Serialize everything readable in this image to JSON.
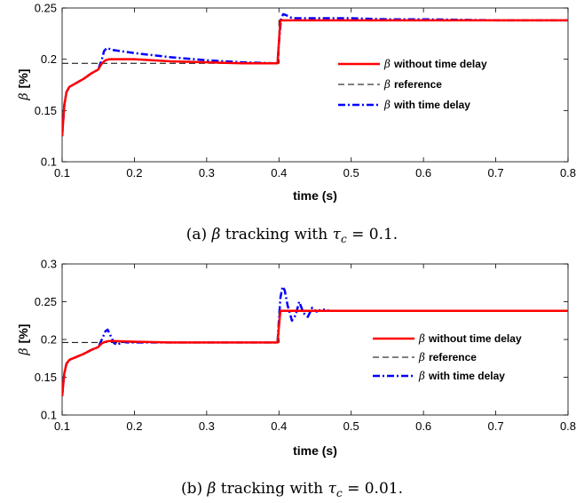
{
  "chart_data": [
    {
      "type": "line",
      "caption": {
        "pre": "(a) ",
        "beta": "β",
        "mid": " tracking with ",
        "tau": "τ",
        "sub": "c",
        "post": " = 0.1."
      },
      "xlabel": "time (s)",
      "ylabel": {
        "symbol": "β",
        "unit": "[%]"
      },
      "xlim": [
        0.1,
        0.8
      ],
      "ylim": [
        0.1,
        0.25
      ],
      "xticks": [
        "0.1",
        "0.2",
        "0.3",
        "0.4",
        "0.5",
        "0.6",
        "0.7",
        "0.8"
      ],
      "yticks": [
        "0.1",
        "0.15",
        "0.2",
        "0.25"
      ],
      "grid": false,
      "legend": {
        "placement": "right",
        "entries": [
          {
            "symbol": "β",
            "text": "without time delay"
          },
          {
            "symbol": "β",
            "text": "reference"
          },
          {
            "symbol": "β",
            "text": "with time delay"
          }
        ]
      },
      "colors": {
        "without": "#ff0000",
        "reference": "#000000",
        "with": "#0000ff"
      },
      "series": [
        {
          "key": "without",
          "style": "solid",
          "x": [
            0.1,
            0.103,
            0.106,
            0.11,
            0.12,
            0.13,
            0.14,
            0.15,
            0.155,
            0.16,
            0.165,
            0.17,
            0.2,
            0.25,
            0.3,
            0.35,
            0.398,
            0.402,
            0.41,
            0.42,
            0.45,
            0.5,
            0.6,
            0.7,
            0.8
          ],
          "y": [
            0.125,
            0.155,
            0.168,
            0.173,
            0.177,
            0.181,
            0.186,
            0.19,
            0.196,
            0.199,
            0.2,
            0.2,
            0.2,
            0.198,
            0.197,
            0.196,
            0.196,
            0.238,
            0.238,
            0.238,
            0.238,
            0.238,
            0.238,
            0.238,
            0.238
          ]
        },
        {
          "key": "reference",
          "style": "dashed",
          "x": [
            0.1,
            0.4,
            0.4,
            0.8
          ],
          "y": [
            0.196,
            0.196,
            0.238,
            0.238
          ]
        },
        {
          "key": "with",
          "style": "dashdot",
          "x": [
            0.1,
            0.103,
            0.106,
            0.11,
            0.12,
            0.13,
            0.14,
            0.15,
            0.155,
            0.158,
            0.162,
            0.166,
            0.17,
            0.2,
            0.25,
            0.3,
            0.35,
            0.398,
            0.401,
            0.403,
            0.406,
            0.41,
            0.415,
            0.42,
            0.45,
            0.5,
            0.55,
            0.6,
            0.7,
            0.8
          ],
          "y": [
            0.125,
            0.155,
            0.168,
            0.173,
            0.177,
            0.181,
            0.186,
            0.19,
            0.2,
            0.208,
            0.211,
            0.21,
            0.209,
            0.206,
            0.202,
            0.199,
            0.197,
            0.196,
            0.225,
            0.24,
            0.244,
            0.243,
            0.241,
            0.24,
            0.24,
            0.24,
            0.239,
            0.239,
            0.238,
            0.238
          ]
        }
      ]
    },
    {
      "type": "line",
      "caption": {
        "pre": "(b) ",
        "beta": "β",
        "mid": " tracking with ",
        "tau": "τ",
        "sub": "c",
        "post": " = 0.01."
      },
      "xlabel": "time (s)",
      "ylabel": {
        "symbol": "β",
        "unit": "[%]"
      },
      "xlim": [
        0.1,
        0.8
      ],
      "ylim": [
        0.1,
        0.3
      ],
      "xticks": [
        "0.1",
        "0.2",
        "0.3",
        "0.4",
        "0.5",
        "0.6",
        "0.7",
        "0.8"
      ],
      "yticks": [
        "0.1",
        "0.15",
        "0.2",
        "0.25",
        "0.3"
      ],
      "grid": false,
      "legend": {
        "placement": "right",
        "entries": [
          {
            "symbol": "β",
            "text": "without time delay"
          },
          {
            "symbol": "β",
            "text": "reference"
          },
          {
            "symbol": "β",
            "text": "with time delay"
          }
        ]
      },
      "colors": {
        "without": "#ff0000",
        "reference": "#000000",
        "with": "#0000ff"
      },
      "series": [
        {
          "key": "without",
          "style": "solid",
          "x": [
            0.1,
            0.103,
            0.106,
            0.11,
            0.12,
            0.13,
            0.14,
            0.15,
            0.155,
            0.16,
            0.165,
            0.17,
            0.2,
            0.25,
            0.3,
            0.35,
            0.398,
            0.402,
            0.45,
            0.5,
            0.6,
            0.7,
            0.8
          ],
          "y": [
            0.125,
            0.155,
            0.168,
            0.173,
            0.177,
            0.181,
            0.186,
            0.19,
            0.195,
            0.197,
            0.198,
            0.198,
            0.197,
            0.196,
            0.196,
            0.196,
            0.196,
            0.238,
            0.238,
            0.238,
            0.238,
            0.238,
            0.238
          ]
        },
        {
          "key": "reference",
          "style": "dashed",
          "x": [
            0.1,
            0.4,
            0.4,
            0.8
          ],
          "y": [
            0.196,
            0.196,
            0.238,
            0.238
          ]
        },
        {
          "key": "with",
          "style": "dashdot",
          "x": [
            0.1,
            0.103,
            0.106,
            0.11,
            0.12,
            0.13,
            0.14,
            0.15,
            0.155,
            0.16,
            0.163,
            0.167,
            0.172,
            0.177,
            0.183,
            0.19,
            0.2,
            0.25,
            0.3,
            0.35,
            0.398,
            0.402,
            0.405,
            0.408,
            0.412,
            0.418,
            0.423,
            0.428,
            0.434,
            0.44,
            0.446,
            0.452,
            0.46,
            0.47,
            0.5,
            0.6,
            0.7,
            0.8
          ],
          "y": [
            0.125,
            0.155,
            0.168,
            0.173,
            0.177,
            0.181,
            0.186,
            0.19,
            0.2,
            0.211,
            0.213,
            0.205,
            0.195,
            0.193,
            0.197,
            0.196,
            0.196,
            0.196,
            0.196,
            0.196,
            0.196,
            0.255,
            0.27,
            0.265,
            0.245,
            0.225,
            0.232,
            0.25,
            0.235,
            0.23,
            0.242,
            0.237,
            0.24,
            0.238,
            0.238,
            0.238,
            0.238,
            0.238
          ]
        }
      ]
    }
  ]
}
